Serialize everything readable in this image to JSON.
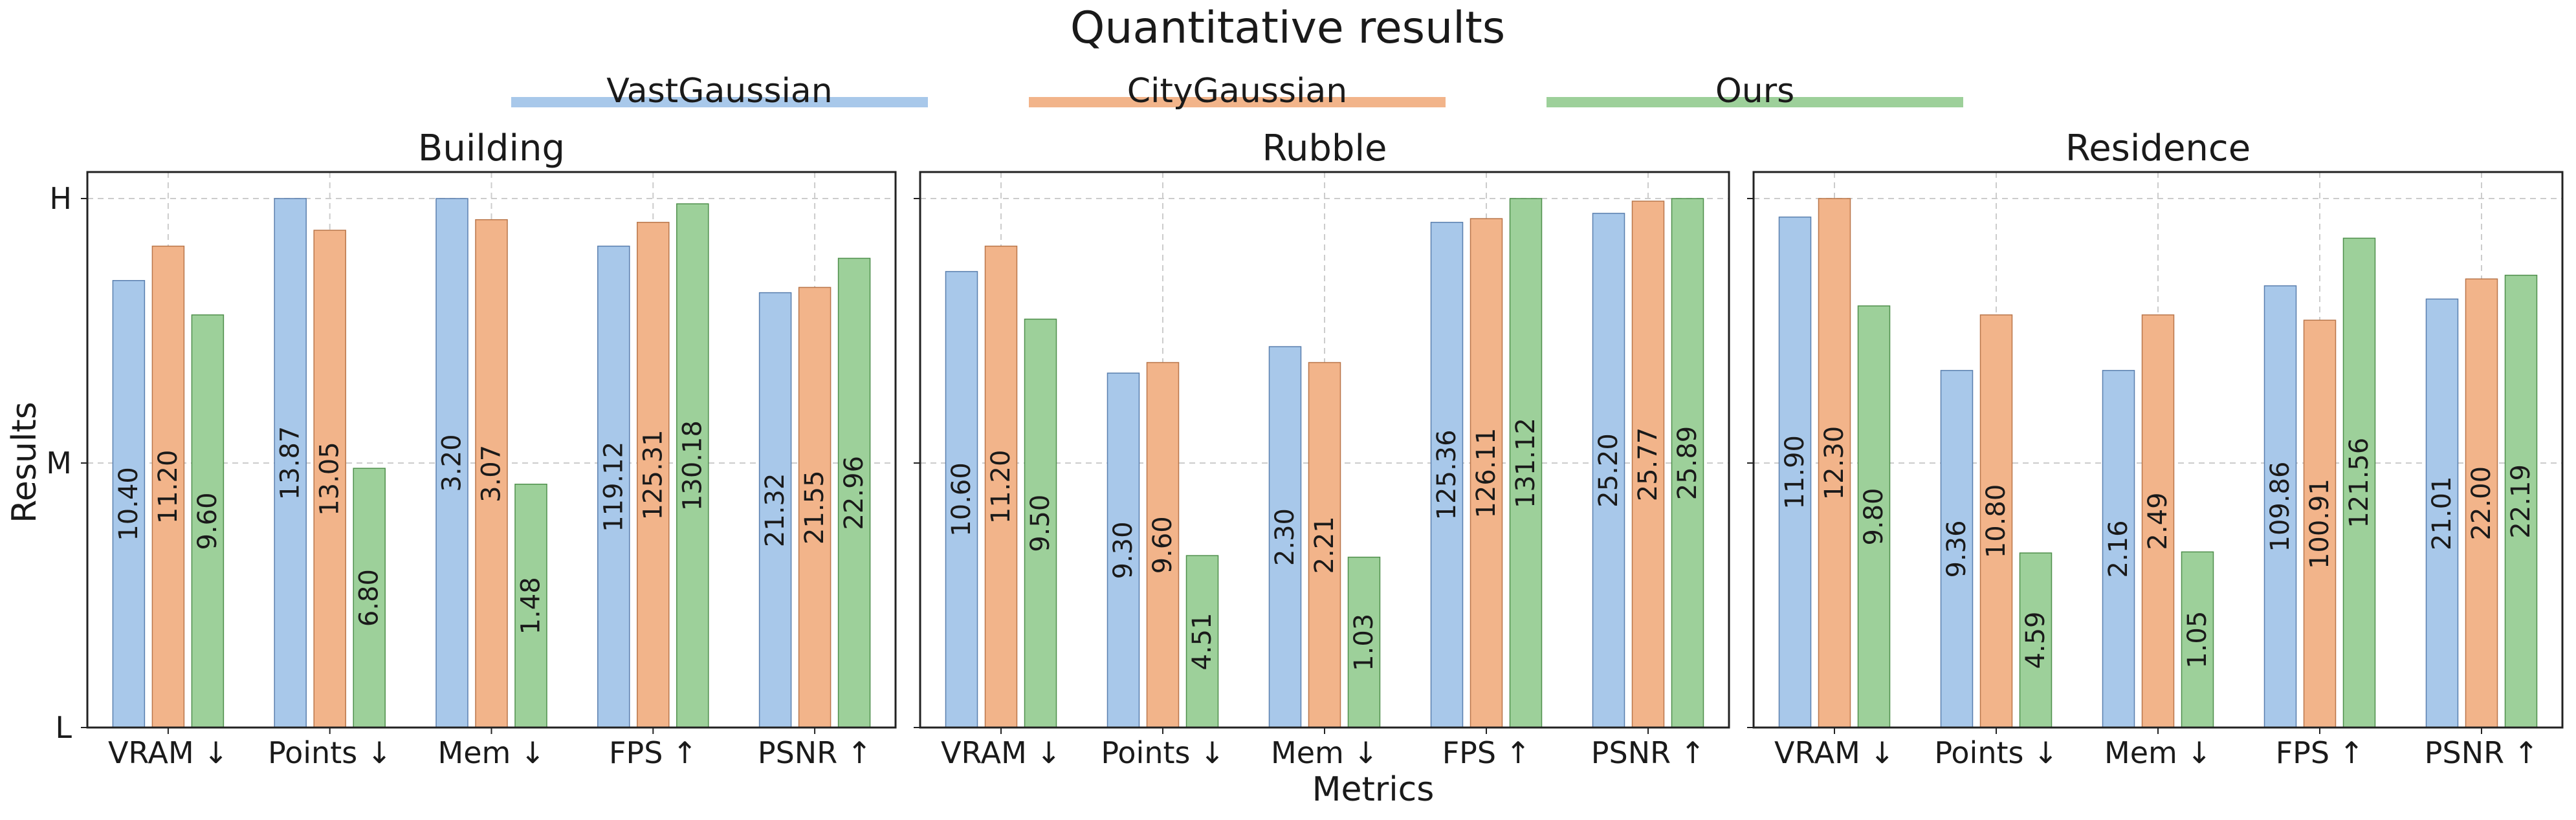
{
  "title": "Quantitative results",
  "ylabel": "Results",
  "xlabel": "Metrics",
  "yticks": [
    "H",
    "M",
    "L"
  ],
  "legend": {
    "placement": "top-center",
    "entries": [
      {
        "name": "VastGaussian",
        "color": "#a8c8ea"
      },
      {
        "name": "CityGaussian",
        "color": "#f2b48a"
      },
      {
        "name": "Ours",
        "color": "#9dd09a"
      }
    ]
  },
  "grid": true,
  "chart_data": [
    {
      "type": "bar",
      "title": "Building",
      "categories": [
        "VRAM ↓",
        "Points ↓",
        "Mem ↓",
        "FPS ↑",
        "PSNR ↑"
      ],
      "ylim": [
        0,
        1
      ],
      "series": [
        {
          "name": "VastGaussian",
          "heights": [
            0.845,
            1.0,
            1.0,
            0.91,
            0.822
          ],
          "labels": [
            "10.40",
            "13.87",
            "3.20",
            "119.12",
            "21.32"
          ]
        },
        {
          "name": "CityGaussian",
          "heights": [
            0.91,
            0.94,
            0.96,
            0.955,
            0.832
          ],
          "labels": [
            "11.20",
            "13.05",
            "3.07",
            "125.31",
            "21.55"
          ]
        },
        {
          "name": "Ours",
          "heights": [
            0.78,
            0.49,
            0.46,
            0.99,
            0.887
          ],
          "labels": [
            "9.60",
            "6.80",
            "1.48",
            "130.18",
            "22.96"
          ]
        }
      ]
    },
    {
      "type": "bar",
      "title": "Rubble",
      "categories": [
        "VRAM ↓",
        "Points ↓",
        "Mem ↓",
        "FPS ↑",
        "PSNR ↑"
      ],
      "ylim": [
        0,
        1
      ],
      "series": [
        {
          "name": "VastGaussian",
          "heights": [
            0.862,
            0.67,
            0.72,
            0.955,
            0.972
          ],
          "labels": [
            "10.60",
            "9.30",
            "2.30",
            "125.36",
            "25.20"
          ]
        },
        {
          "name": "CityGaussian",
          "heights": [
            0.91,
            0.69,
            0.69,
            0.962,
            0.995
          ],
          "labels": [
            "11.20",
            "9.60",
            "2.21",
            "126.11",
            "25.77"
          ]
        },
        {
          "name": "Ours",
          "heights": [
            0.772,
            0.325,
            0.322,
            1.0,
            1.0
          ],
          "labels": [
            "9.50",
            "4.51",
            "1.03",
            "131.12",
            "25.89"
          ]
        }
      ]
    },
    {
      "type": "bar",
      "title": "Residence",
      "categories": [
        "VRAM ↓",
        "Points ↓",
        "Mem ↓",
        "FPS ↑",
        "PSNR ↑"
      ],
      "ylim": [
        0,
        1
      ],
      "series": [
        {
          "name": "VastGaussian",
          "heights": [
            0.965,
            0.675,
            0.675,
            0.835,
            0.81
          ],
          "labels": [
            "11.90",
            "9.36",
            "2.16",
            "109.86",
            "21.01"
          ]
        },
        {
          "name": "CityGaussian",
          "heights": [
            1.0,
            0.78,
            0.78,
            0.77,
            0.848
          ],
          "labels": [
            "12.30",
            "10.80",
            "2.49",
            "100.91",
            "22.00"
          ]
        },
        {
          "name": "Ours",
          "heights": [
            0.797,
            0.33,
            0.332,
            0.925,
            0.855
          ],
          "labels": [
            "9.80",
            "4.59",
            "1.05",
            "121.56",
            "22.19"
          ]
        }
      ]
    }
  ]
}
